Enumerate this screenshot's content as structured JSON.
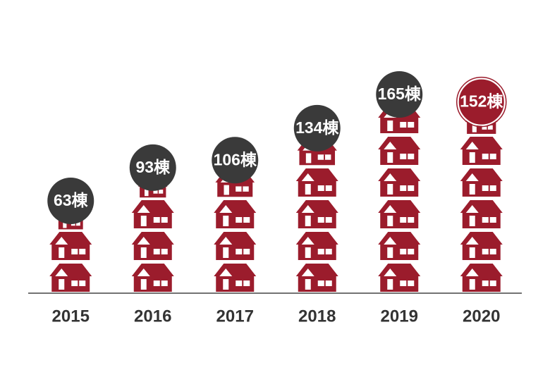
{
  "chart_data": {
    "type": "pictograph",
    "categories": [
      "2015",
      "2016",
      "2017",
      "2018",
      "2019",
      "2020"
    ],
    "values": [
      63,
      93,
      106,
      134,
      165,
      152
    ],
    "value_labels": [
      "63棟",
      "93棟",
      "106棟",
      "134棟",
      "165棟",
      "152棟"
    ],
    "color": "#9b1c2c",
    "bubble_colors": [
      "#3a3a3a",
      "#3a3a3a",
      "#3a3a3a",
      "#3a3a3a",
      "#3a3a3a",
      "#9b1c2c"
    ]
  }
}
